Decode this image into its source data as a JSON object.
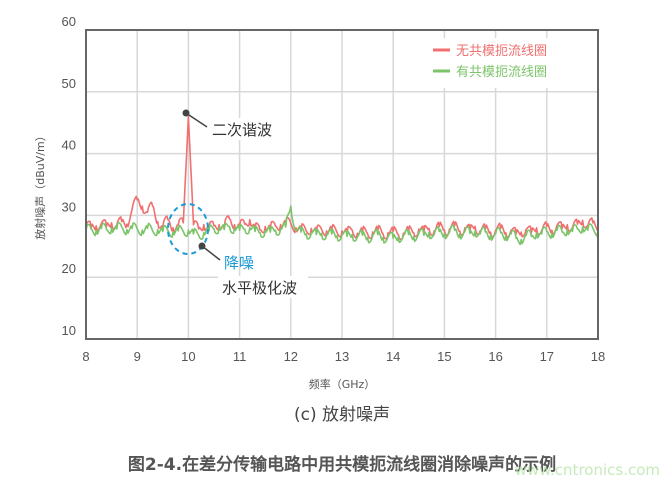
{
  "chart_data": {
    "type": "line",
    "xlabel": "频率（GHz）",
    "ylabel": "放射噪声（dBuV/m）",
    "xlim": [
      8,
      18
    ],
    "ylim": [
      10,
      60
    ],
    "xticks": [
      "8",
      "9",
      "10",
      "11",
      "12",
      "13",
      "14",
      "15",
      "16",
      "17",
      "18"
    ],
    "yticks": [
      "10",
      "20",
      "30",
      "40",
      "50",
      "60"
    ],
    "grid": true,
    "legend_position": "top-right",
    "x_step": 0.1,
    "x_start": 8,
    "series": [
      {
        "name": "无共模扼流线圈",
        "color": "#f07070",
        "values": [
          28.5,
          28,
          28.3,
          28.7,
          28.2,
          28.8,
          28.4,
          29,
          28.6,
          31,
          32.5,
          31.5,
          30.5,
          31.5,
          29,
          28.2,
          29.3,
          28,
          28.5,
          28.8,
          46,
          28.5,
          27.8,
          28.5,
          28,
          28.3,
          28.5,
          28.2,
          29.5,
          28.5,
          28.3,
          28.6,
          29.3,
          28,
          27.6,
          28.2,
          28,
          28.3,
          28.5,
          28.8,
          28.7,
          28,
          27.8,
          27.5,
          27.9,
          27.4,
          27.8,
          27.5,
          27.7,
          27.3,
          27.5,
          27.2,
          27.6,
          27.1,
          27.4,
          27,
          27.3,
          27.6,
          27,
          27.2,
          27.4,
          26.9,
          27.1,
          27.5,
          27.2,
          27.8,
          27.4,
          27.9,
          27.5,
          28.2,
          27.6,
          27.8,
          28.3,
          27.5,
          28,
          27.6,
          28.2,
          27.5,
          27.8,
          27.3,
          27.6,
          27.9,
          27.2,
          27.6,
          27,
          27.3,
          27.8,
          27.2,
          28,
          27.5,
          28.2,
          27.6,
          28.4,
          27.9,
          28.5,
          28,
          28.6,
          29.2,
          28.3,
          28.8,
          28.2
        ]
      },
      {
        "name": "有共模扼流线圈",
        "color": "#7cc46a",
        "values": [
          27.5,
          27.8,
          27.6,
          27.9,
          27.7,
          28,
          27.8,
          28.1,
          27.7,
          27.9,
          27.8,
          27.6,
          27.9,
          27.5,
          27.7,
          27.4,
          27.6,
          27.3,
          27.5,
          27.4,
          27.6,
          27,
          26.8,
          27.2,
          27.5,
          27.8,
          28,
          27.7,
          28.2,
          27.9,
          27.6,
          27.8,
          28,
          27.4,
          27.2,
          27.5,
          27.3,
          27.6,
          27.8,
          28.1,
          31.5,
          27.6,
          27.3,
          27,
          27.2,
          26.9,
          27.1,
          26.8,
          27,
          26.7,
          26.9,
          26.6,
          26.9,
          26.5,
          26.8,
          26.4,
          26.7,
          26.9,
          26.4,
          26.6,
          26.3,
          26.5,
          26.7,
          26.9,
          26.6,
          27.1,
          26.8,
          27.2,
          26.9,
          27.4,
          27.1,
          27.3,
          27.6,
          27,
          27.4,
          27.1,
          27.5,
          27,
          27.3,
          26.8,
          27,
          27.2,
          26.7,
          27,
          26.3,
          26.1,
          26.8,
          26.6,
          27.2,
          27,
          27.4,
          27.1,
          27.6,
          27.3,
          27.7,
          27.4,
          27.8,
          28.1,
          27.6,
          27.9,
          27.5
        ]
      }
    ],
    "annotations": [
      {
        "text": "二次谐波",
        "x": 10,
        "y": 46,
        "color": "#333333"
      },
      {
        "text": "降噪",
        "color": "#1a9ad6"
      },
      {
        "text": "水平极化波",
        "color": "#333333"
      }
    ],
    "subtitle": "(c) 放射噪声"
  },
  "caption": "图2-4.在差分传输电路中用共模扼流线圈消除噪声的示例",
  "watermark": "www.cntronics.com"
}
